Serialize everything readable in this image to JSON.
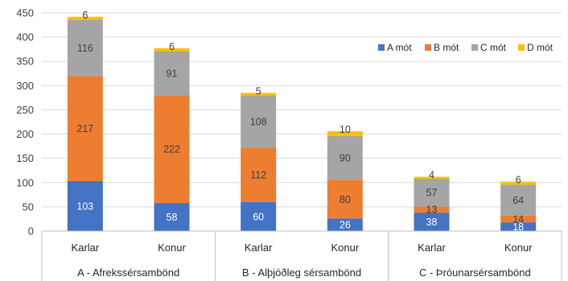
{
  "chart_data": {
    "type": "bar",
    "stacked": true,
    "groups": [
      "A - Afrekssérsambönd",
      "B - Alþjóðleg sérsambönd",
      "C - Þróunarsérsambönd"
    ],
    "categories": [
      "Karlar",
      "Konur",
      "Karlar",
      "Konur",
      "Karlar",
      "Konur"
    ],
    "series": [
      {
        "name": "A mót",
        "color": "#4472C4",
        "values": [
          103,
          58,
          60,
          26,
          38,
          18
        ]
      },
      {
        "name": "B mót",
        "color": "#ED7D31",
        "values": [
          217,
          222,
          112,
          80,
          13,
          14
        ]
      },
      {
        "name": "C mót",
        "color": "#A5A5A5",
        "values": [
          116,
          91,
          108,
          90,
          57,
          64
        ]
      },
      {
        "name": "D mót",
        "color": "#FFC000",
        "values": [
          6,
          6,
          5,
          10,
          4,
          6
        ]
      }
    ],
    "yticks": [
      0,
      50,
      100,
      150,
      200,
      250,
      300,
      350,
      400,
      450
    ],
    "ylim": [
      0,
      450
    ],
    "legend_position": "top-right",
    "grid": true
  }
}
